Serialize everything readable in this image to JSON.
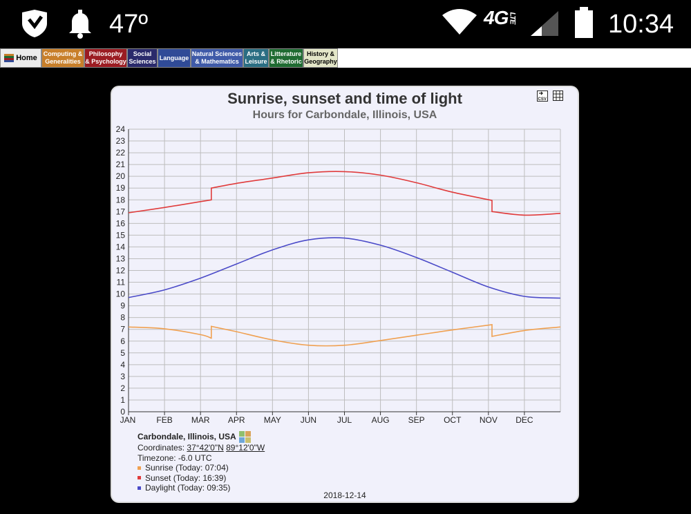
{
  "statusbar": {
    "temperature": "47º",
    "network": "4G",
    "network_sub": "LTE",
    "time": "10:34"
  },
  "nav": {
    "tabs": [
      {
        "label": "Home",
        "bg": "#ececec",
        "fg": "#000"
      },
      {
        "label": "Computing &\nGeneralities",
        "bg": "#c87f2a",
        "fg": "#fff"
      },
      {
        "label": "Philosophy\n& Psychology",
        "bg": "#9b1c22",
        "fg": "#fff"
      },
      {
        "label": "Social\nSciences",
        "bg": "#2a2a6b",
        "fg": "#fff"
      },
      {
        "label": "Language",
        "bg": "#304b97",
        "fg": "#fff"
      },
      {
        "label": "Natural Sciences\n& Mathematics",
        "bg": "#3f5aa8",
        "fg": "#fff"
      },
      {
        "label": "Arts &\nLeisure",
        "bg": "#2b6e83",
        "fg": "#fff"
      },
      {
        "label": "Litterature\n& Rhetoric",
        "bg": "#1f6b32",
        "fg": "#fff"
      },
      {
        "label": "History &\nGeography",
        "bg": "#e3e6c8",
        "fg": "#000"
      }
    ]
  },
  "chart_data": {
    "type": "line",
    "title": "Sunrise, sunset and time of light",
    "subtitle": "Hours for Carbondale, Illinois, USA",
    "x_ticks": [
      "JAN",
      "FEB",
      "MAR",
      "APR",
      "MAY",
      "JUN",
      "JUL",
      "AUG",
      "SEP",
      "OCT",
      "NOV",
      "DEC"
    ],
    "ylim": [
      0,
      24
    ],
    "y_ticks": [
      0,
      1,
      2,
      3,
      4,
      5,
      6,
      7,
      8,
      9,
      10,
      11,
      12,
      13,
      14,
      15,
      16,
      17,
      18,
      19,
      20,
      21,
      22,
      23,
      24
    ],
    "grid": true,
    "colors": {
      "sunrise": "#f0a050",
      "sunset": "#e03b3b",
      "daylight": "#4a4ac8"
    },
    "series": [
      {
        "name": "Sunrise",
        "x": [
          0,
          1,
          2,
          2.3,
          2.3,
          3,
          4,
          5,
          6,
          7,
          8,
          9,
          10.1,
          10.1,
          11,
          12
        ],
        "values": [
          7.2,
          7.05,
          6.55,
          6.25,
          7.25,
          6.8,
          6.1,
          5.65,
          5.65,
          6.05,
          6.5,
          6.95,
          7.4,
          6.4,
          6.9,
          7.2
        ]
      },
      {
        "name": "Sunset",
        "x": [
          0,
          1,
          2,
          2.3,
          2.3,
          3,
          4,
          5,
          6,
          7,
          8,
          9,
          10.1,
          10.1,
          11,
          12
        ],
        "values": [
          16.9,
          17.35,
          17.85,
          18.0,
          19.0,
          19.4,
          19.85,
          20.3,
          20.4,
          20.1,
          19.45,
          18.65,
          17.95,
          17.0,
          16.7,
          16.85
        ]
      },
      {
        "name": "Daylight",
        "x": [
          0,
          1,
          2,
          3,
          4,
          5,
          6,
          7,
          8,
          9,
          10,
          11,
          12
        ],
        "values": [
          9.7,
          10.35,
          11.35,
          12.55,
          13.75,
          14.6,
          14.75,
          14.15,
          13.1,
          11.85,
          10.6,
          9.8,
          9.65
        ]
      }
    ]
  },
  "legend": {
    "location": "Carbondale, Illinois, USA",
    "coordinates_label": "Coordinates:",
    "lat": "37°42'0\"N",
    "lon": "89°12'0\"W",
    "timezone": "Timezone: -6.0 UTC",
    "items": [
      {
        "label": "Sunrise (Today: 07:04)",
        "color": "#f0a050"
      },
      {
        "label": "Sunset (Today: 16:39)",
        "color": "#e03b3b"
      },
      {
        "label": "Daylight (Today: 09:35)",
        "color": "#4a4ac8"
      }
    ]
  },
  "date": "2018-12-14"
}
